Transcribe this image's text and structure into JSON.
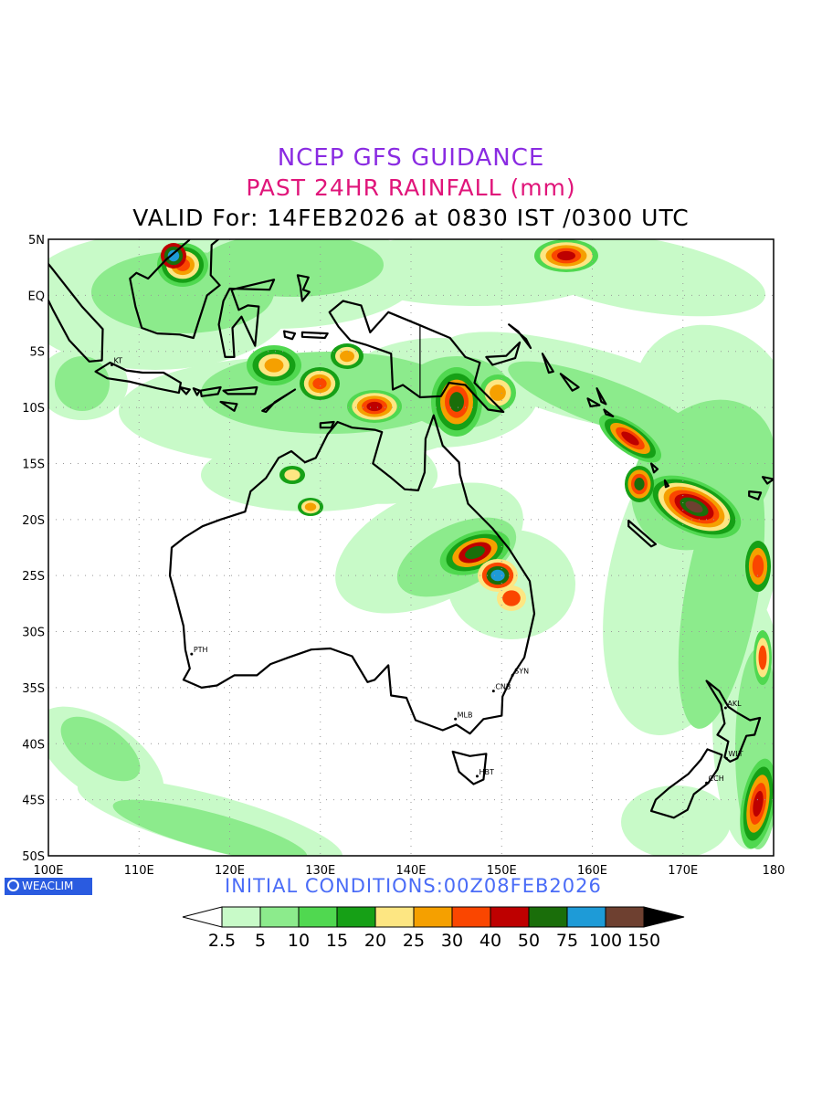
{
  "titles": {
    "line1": "NCEP GFS GUIDANCE",
    "line2": "PAST 24HR RAINFALL (mm)",
    "line3": "VALID For: 14FEB2026 at 0830 IST /0300 UTC",
    "line1_color": "#8a2be2",
    "line2_color": "#e0157a",
    "line3_color": "#000000"
  },
  "map": {
    "lat_labels": [
      "5N",
      "EQ",
      "5S",
      "10S",
      "15S",
      "20S",
      "25S",
      "30S",
      "35S",
      "40S",
      "45S",
      "50S"
    ],
    "lon_labels": [
      "100E",
      "110E",
      "120E",
      "130E",
      "140E",
      "150E",
      "160E",
      "170E",
      "180"
    ],
    "cities": [
      {
        "code": "KT",
        "lon": 107.0,
        "lat": -6.2
      },
      {
        "code": "PTH",
        "lon": 115.8,
        "lat": -32.0
      },
      {
        "code": "SYN",
        "lon": 151.2,
        "lat": -33.9
      },
      {
        "code": "CNB",
        "lon": 149.1,
        "lat": -35.3
      },
      {
        "code": "MLB",
        "lon": 144.9,
        "lat": -37.8
      },
      {
        "code": "HBT",
        "lon": 147.3,
        "lat": -42.9
      },
      {
        "code": "AKL",
        "lon": 174.7,
        "lat": -36.8
      },
      {
        "code": "WLT",
        "lon": 174.8,
        "lat": -41.3
      },
      {
        "code": "CCH",
        "lon": 172.6,
        "lat": -43.5
      }
    ]
  },
  "init_conditions": "INITIAL CONDITIONS:00Z08FEB2026",
  "init_color": "#4a6cf7",
  "logo": "WEACLIM",
  "colorbar": {
    "labels": [
      "2.5",
      "5",
      "10",
      "15",
      "20",
      "25",
      "30",
      "40",
      "50",
      "75",
      "100",
      "150"
    ],
    "colors": [
      "#ffffff",
      "#c8fac8",
      "#8ceb8c",
      "#50d850",
      "#16a016",
      "#fde682",
      "#f5a000",
      "#fa4600",
      "#be0000",
      "#1a6e0a",
      "#1e9bd7",
      "#6e4030",
      "#000000"
    ]
  }
}
